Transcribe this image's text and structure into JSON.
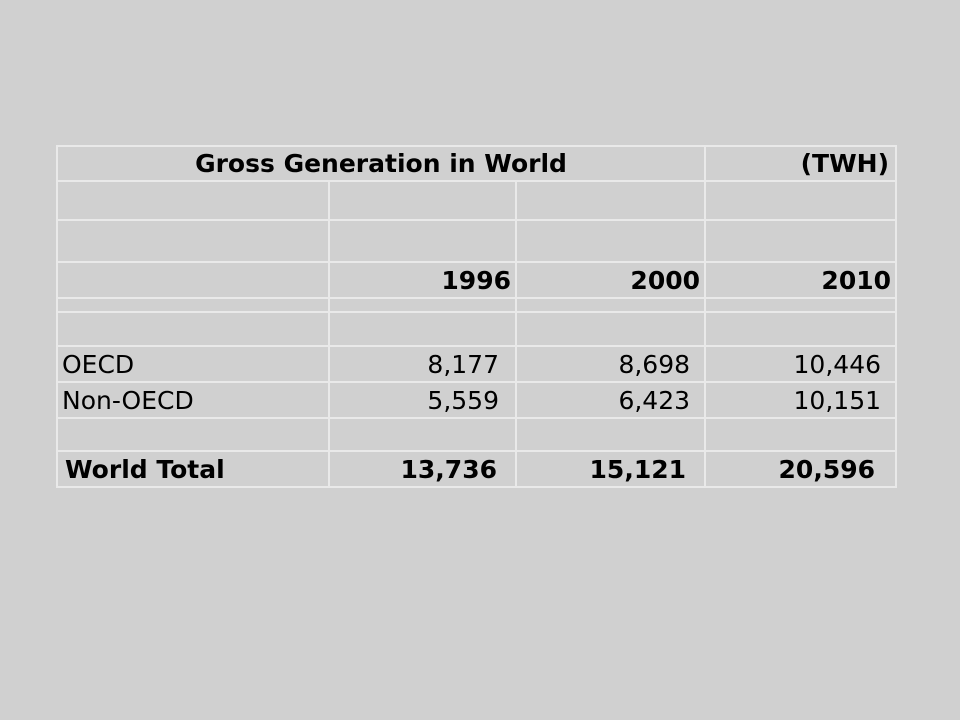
{
  "table": {
    "title": "Gross Generation in World",
    "unit": "(TWH)",
    "years": [
      "1996",
      "2000",
      "2010"
    ],
    "rows": [
      {
        "label": "OECD",
        "values": [
          "8,177",
          "8,698",
          "10,446"
        ]
      },
      {
        "label": "Non-OECD",
        "values": [
          "5,559",
          "6,423",
          "10,151"
        ]
      }
    ],
    "total": {
      "label": "World Total",
      "values": [
        "13,736",
        "15,121",
        "20,596"
      ]
    }
  }
}
